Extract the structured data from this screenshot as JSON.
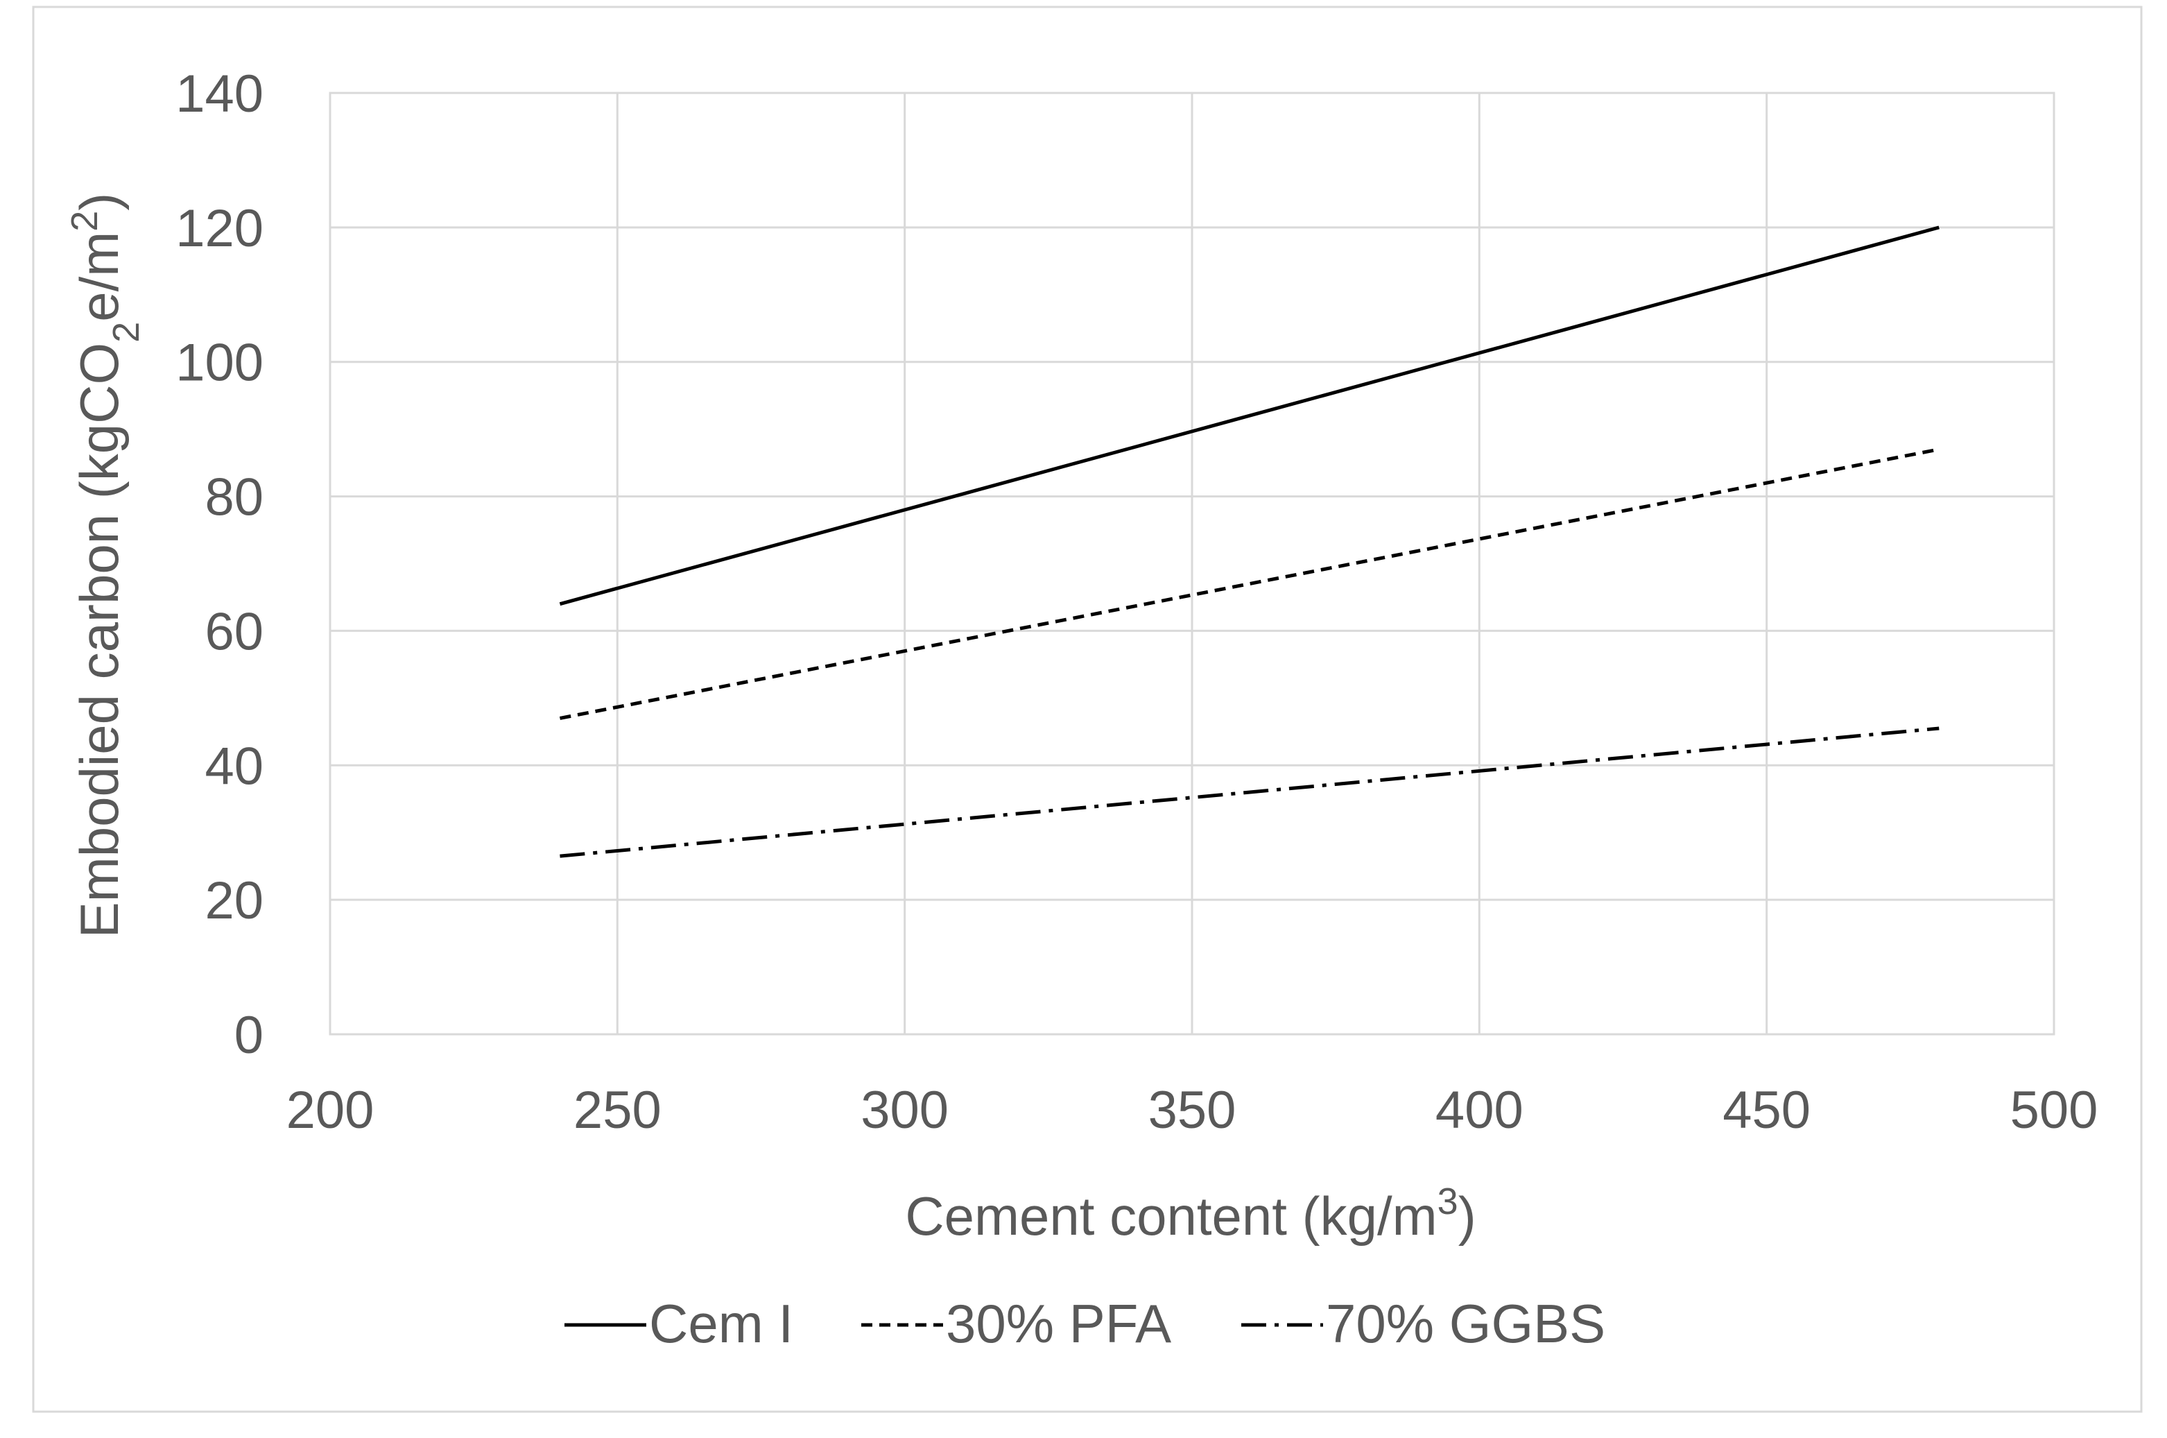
{
  "chart_data": {
    "type": "line",
    "title": "",
    "xlabel": {
      "text": "Cement content (kg/m",
      "sup": "3",
      "suffix": ")"
    },
    "ylabel": {
      "text": "Embodied carbon (kgCO",
      "sub": "2",
      "mid": "e/m",
      "sup": "2",
      "suffix": ")"
    },
    "xlim": [
      200,
      500
    ],
    "ylim": [
      0,
      140
    ],
    "xticks": [
      200,
      250,
      300,
      350,
      400,
      450,
      500
    ],
    "yticks": [
      0,
      20,
      40,
      60,
      80,
      100,
      120,
      140
    ],
    "grid": true,
    "legend_position": "bottom",
    "series": [
      {
        "name": "Cem I",
        "style": "solid",
        "color": "#000000",
        "x": [
          240,
          480
        ],
        "y": [
          64,
          120
        ]
      },
      {
        "name": "30% PFA",
        "style": "dashed",
        "color": "#000000",
        "x": [
          240,
          480
        ],
        "y": [
          47,
          87
        ]
      },
      {
        "name": "70% GGBS",
        "style": "dash-dot",
        "color": "#000000",
        "x": [
          240,
          480
        ],
        "y": [
          26.5,
          45.5
        ]
      }
    ]
  },
  "colors": {
    "grid": "#d9d9d9",
    "text": "#595959",
    "frame": "#d9d9d9"
  }
}
